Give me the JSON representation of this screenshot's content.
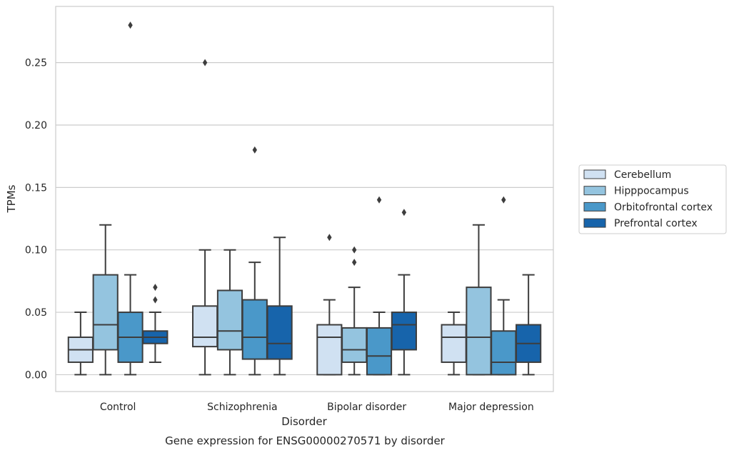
{
  "chart_data": {
    "type": "boxplot",
    "title": "",
    "caption": "Gene expression for ENSG00000270571 by disorder",
    "xlabel": "Disorder",
    "ylabel": "TPMs",
    "ylim": [
      -0.0135,
      0.295
    ],
    "yticks": [
      0.0,
      0.05,
      0.1,
      0.15,
      0.2,
      0.25
    ],
    "ytick_labels": [
      "0.00",
      "0.05",
      "0.10",
      "0.15",
      "0.20",
      "0.25"
    ],
    "grid": "horizontal",
    "legend_position": "right-outside",
    "categories": [
      "Control",
      "Schizophrenia",
      "Bipolar disorder",
      "Major depression"
    ],
    "series": [
      {
        "name": "Cerebellum",
        "color": "#d0e1f2",
        "boxes": [
          {
            "whisker_low": 0.0,
            "q1": 0.01,
            "median": 0.02,
            "q3": 0.03,
            "whisker_high": 0.05,
            "outliers": []
          },
          {
            "whisker_low": 0.0,
            "q1": 0.0225,
            "median": 0.03,
            "q3": 0.055,
            "whisker_high": 0.1,
            "outliers": [
              0.25
            ]
          },
          {
            "whisker_low": 0.0,
            "q1": 0.0,
            "median": 0.03,
            "q3": 0.04,
            "whisker_high": 0.06,
            "outliers": [
              0.11
            ]
          },
          {
            "whisker_low": 0.0,
            "q1": 0.01,
            "median": 0.03,
            "q3": 0.04,
            "whisker_high": 0.05,
            "outliers": []
          }
        ]
      },
      {
        "name": "Hipppocampus",
        "color": "#94c4df",
        "boxes": [
          {
            "whisker_low": 0.0,
            "q1": 0.02,
            "median": 0.04,
            "q3": 0.08,
            "whisker_high": 0.12,
            "outliers": []
          },
          {
            "whisker_low": 0.0,
            "q1": 0.02,
            "median": 0.035,
            "q3": 0.0675,
            "whisker_high": 0.1,
            "outliers": []
          },
          {
            "whisker_low": 0.0,
            "q1": 0.01,
            "median": 0.02,
            "q3": 0.0375,
            "whisker_high": 0.07,
            "outliers": [
              0.09,
              0.1
            ]
          },
          {
            "whisker_low": 0.0,
            "q1": 0.0,
            "median": 0.03,
            "q3": 0.07,
            "whisker_high": 0.12,
            "outliers": []
          }
        ]
      },
      {
        "name": "Orbitofrontal cortex",
        "color": "#4a98c9",
        "boxes": [
          {
            "whisker_low": 0.0,
            "q1": 0.01,
            "median": 0.03,
            "q3": 0.05,
            "whisker_high": 0.08,
            "outliers": [
              0.28
            ]
          },
          {
            "whisker_low": 0.0,
            "q1": 0.0125,
            "median": 0.03,
            "q3": 0.06,
            "whisker_high": 0.09,
            "outliers": [
              0.18
            ]
          },
          {
            "whisker_low": 0.0,
            "q1": 0.0,
            "median": 0.015,
            "q3": 0.0375,
            "whisker_high": 0.05,
            "outliers": [
              0.14
            ]
          },
          {
            "whisker_low": 0.0,
            "q1": 0.0,
            "median": 0.01,
            "q3": 0.035,
            "whisker_high": 0.06,
            "outliers": [
              0.14
            ]
          }
        ]
      },
      {
        "name": "Prefrontal cortex",
        "color": "#1764ab",
        "boxes": [
          {
            "whisker_low": 0.01,
            "q1": 0.025,
            "median": 0.03,
            "q3": 0.035,
            "whisker_high": 0.05,
            "outliers": [
              0.06,
              0.07
            ]
          },
          {
            "whisker_low": 0.0,
            "q1": 0.0125,
            "median": 0.025,
            "q3": 0.055,
            "whisker_high": 0.11,
            "outliers": []
          },
          {
            "whisker_low": 0.0,
            "q1": 0.02,
            "median": 0.04,
            "q3": 0.05,
            "whisker_high": 0.08,
            "outliers": [
              0.13
            ]
          },
          {
            "whisker_low": 0.0,
            "q1": 0.01,
            "median": 0.025,
            "q3": 0.04,
            "whisker_high": 0.08,
            "outliers": []
          }
        ]
      }
    ]
  }
}
